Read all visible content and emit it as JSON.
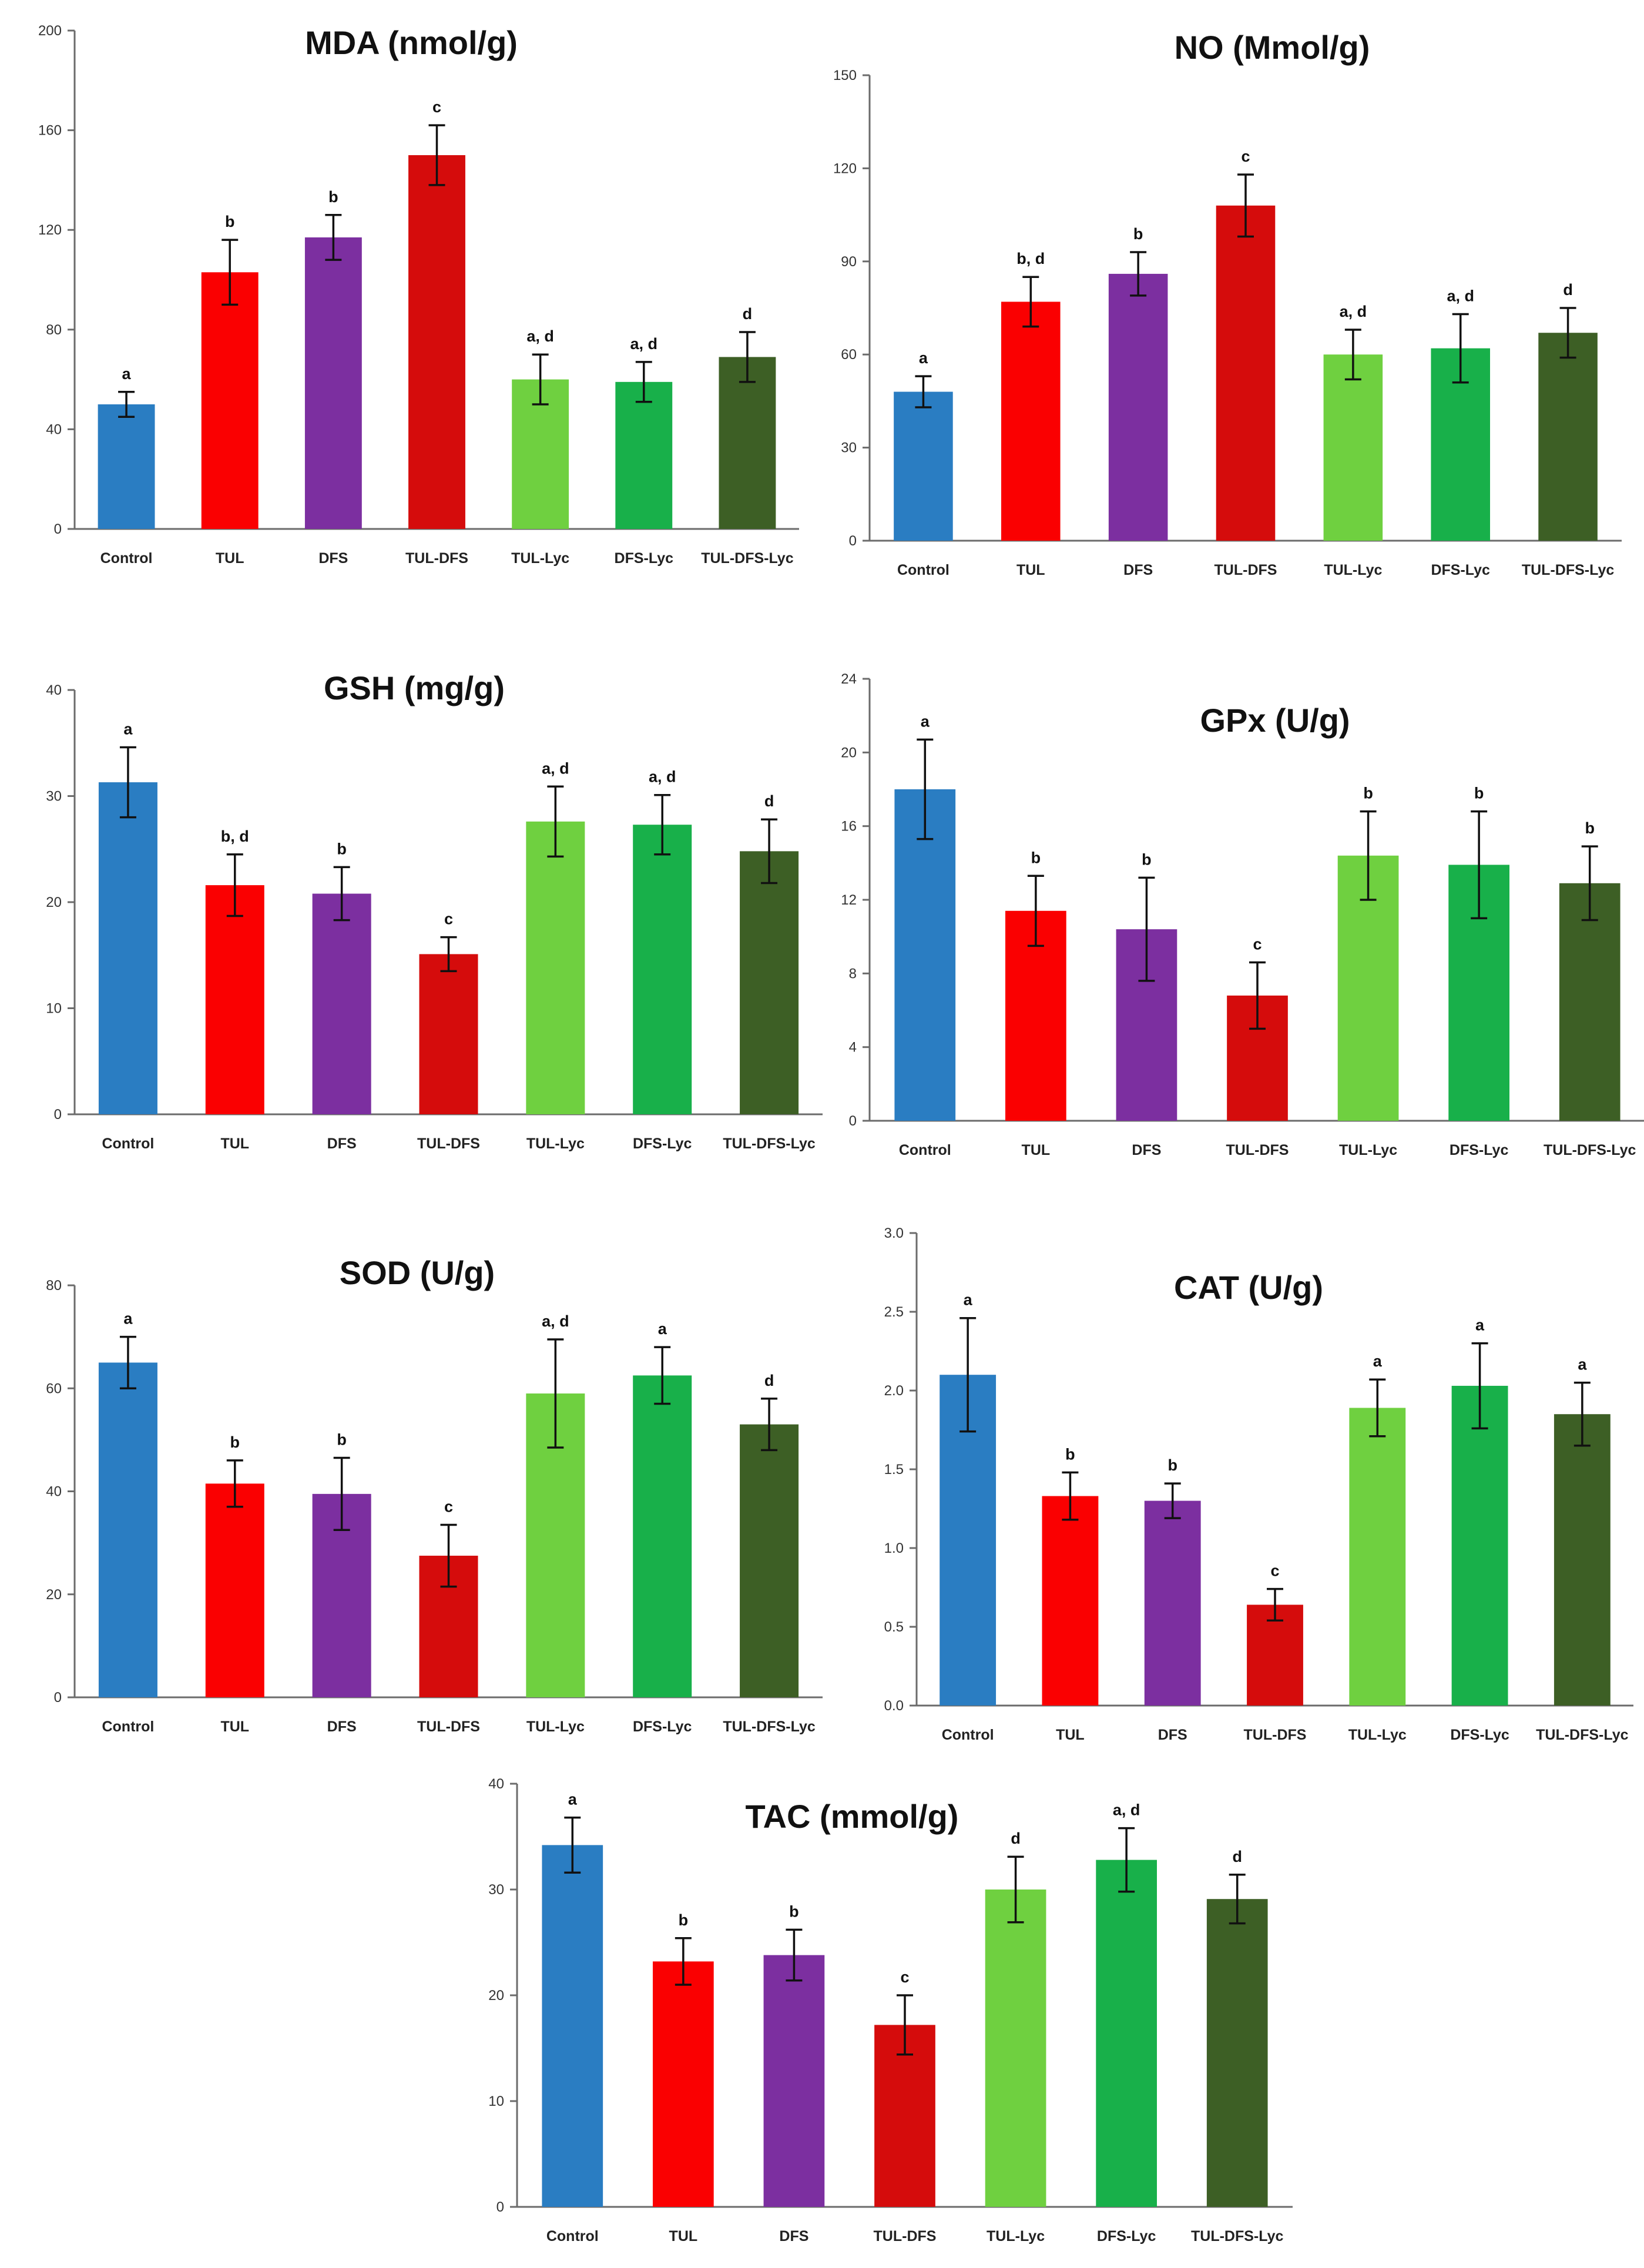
{
  "colors": {
    "Control": "#2a7dc2",
    "TUL": "#fa0001",
    "DFS": "#7c2fa0",
    "TUL-DFS": "#d50c0c",
    "TUL-Lyc": "#6fd040",
    "DFS-Lyc": "#18b04a",
    "TUL-DFS-Lyc": "#3d5f25"
  },
  "chart_data": [
    {
      "type": "bar",
      "title": "MDA (nmol/g)",
      "categories": [
        "Control",
        "TUL",
        "DFS",
        "TUL-DFS",
        "TUL-Lyc",
        "DFS-Lyc",
        "TUL-DFS-Lyc"
      ],
      "values": [
        50,
        103,
        117,
        150,
        60,
        59,
        69
      ],
      "errors": [
        5,
        13,
        9,
        12,
        10,
        8,
        10
      ],
      "sig_labels": [
        "a",
        "b",
        "b",
        "c",
        "a, d",
        "a, d",
        "d"
      ],
      "ylim": [
        0,
        200
      ],
      "yticks": [
        0,
        40,
        80,
        120,
        160,
        200
      ],
      "ytick_labels": [
        "0",
        "40",
        "80",
        "120",
        "160",
        "200"
      ],
      "xlabel": "",
      "ylabel": ""
    },
    {
      "type": "bar",
      "title": "NO (Mmol/g)",
      "categories": [
        "Control",
        "TUL",
        "DFS",
        "TUL-DFS",
        "TUL-Lyc",
        "DFS-Lyc",
        "TUL-DFS-Lyc"
      ],
      "values": [
        48,
        77,
        86,
        108,
        60,
        62,
        67
      ],
      "errors": [
        5,
        8,
        7,
        10,
        8,
        11,
        8
      ],
      "sig_labels": [
        "a",
        "b, d",
        "b",
        "c",
        "a, d",
        "a, d",
        "d"
      ],
      "ylim": [
        0,
        150
      ],
      "yticks": [
        0,
        30,
        60,
        90,
        120,
        150
      ],
      "ytick_labels": [
        "0",
        "30",
        "60",
        "90",
        "120",
        "150"
      ],
      "xlabel": "",
      "ylabel": ""
    },
    {
      "type": "bar",
      "title": "GSH (mg/g)",
      "categories": [
        "Control",
        "TUL",
        "DFS",
        "TUL-DFS",
        "TUL-Lyc",
        "DFS-Lyc",
        "TUL-DFS-Lyc"
      ],
      "values": [
        31.3,
        21.6,
        20.8,
        15.1,
        27.6,
        27.3,
        24.8
      ],
      "errors": [
        3.3,
        2.9,
        2.5,
        1.6,
        3.3,
        2.8,
        3.0
      ],
      "sig_labels": [
        "a",
        "b, d",
        "b",
        "c",
        "a, d",
        "a, d",
        "d"
      ],
      "ylim": [
        0,
        40
      ],
      "yticks": [
        0,
        10,
        20,
        30,
        40
      ],
      "ytick_labels": [
        "0",
        "10",
        "20",
        "30",
        "40"
      ],
      "xlabel": "",
      "ylabel": ""
    },
    {
      "type": "bar",
      "title": "GPx (U/g)",
      "categories": [
        "Control",
        "TUL",
        "DFS",
        "TUL-DFS",
        "TUL-Lyc",
        "DFS-Lyc",
        "TUL-DFS-Lyc"
      ],
      "values": [
        18,
        11.4,
        10.4,
        6.8,
        14.4,
        13.9,
        12.9
      ],
      "errors": [
        2.7,
        1.9,
        2.8,
        1.8,
        2.4,
        2.9,
        2.0
      ],
      "sig_labels": [
        "a",
        "b",
        "b",
        "c",
        "b",
        "b",
        "b"
      ],
      "ylim": [
        0,
        24
      ],
      "yticks": [
        0,
        4,
        8,
        12,
        16,
        20,
        24
      ],
      "ytick_labels": [
        "0",
        "4",
        "8",
        "12",
        "16",
        "20",
        "24"
      ],
      "xlabel": "",
      "ylabel": ""
    },
    {
      "type": "bar",
      "title": "SOD (U/g)",
      "categories": [
        "Control",
        "TUL",
        "DFS",
        "TUL-DFS",
        "TUL-Lyc",
        "DFS-Lyc",
        "TUL-DFS-Lyc"
      ],
      "values": [
        65,
        41.5,
        39.5,
        27.5,
        59,
        62.5,
        53
      ],
      "errors": [
        5,
        4.5,
        7,
        6,
        10.5,
        5.5,
        5
      ],
      "sig_labels": [
        "a",
        "b",
        "b",
        "c",
        "a, d",
        "a",
        "d"
      ],
      "ylim": [
        0,
        80
      ],
      "yticks": [
        0,
        20,
        40,
        60,
        80
      ],
      "ytick_labels": [
        "0",
        "20",
        "40",
        "60",
        "80"
      ],
      "xlabel": "",
      "ylabel": ""
    },
    {
      "type": "bar",
      "title": "CAT (U/g)",
      "categories": [
        "Control",
        "TUL",
        "DFS",
        "TUL-DFS",
        "TUL-Lyc",
        "DFS-Lyc",
        "TUL-DFS-Lyc"
      ],
      "values": [
        2.1,
        1.33,
        1.3,
        0.64,
        1.89,
        2.03,
        1.85
      ],
      "errors": [
        0.36,
        0.15,
        0.11,
        0.1,
        0.18,
        0.27,
        0.2
      ],
      "sig_labels": [
        "a",
        "b",
        "b",
        "c",
        "a",
        "a",
        "a"
      ],
      "ylim": [
        0,
        3.0
      ],
      "yticks": [
        0,
        0.5,
        1.0,
        1.5,
        2.0,
        2.5,
        3.0
      ],
      "ytick_labels": [
        "0.0",
        "0.5",
        "1.0",
        "1.5",
        "2.0",
        "2.5",
        "3.0"
      ],
      "xlabel": "",
      "ylabel": ""
    },
    {
      "type": "bar",
      "title": "TAC (mmol/g)",
      "categories": [
        "Control",
        "TUL",
        "DFS",
        "TUL-DFS",
        "TUL-Lyc",
        "DFS-Lyc",
        "TUL-DFS-Lyc"
      ],
      "values": [
        34.2,
        23.2,
        23.8,
        17.2,
        30,
        32.8,
        29.1
      ],
      "errors": [
        2.6,
        2.2,
        2.4,
        2.8,
        3.1,
        3.0,
        2.3
      ],
      "sig_labels": [
        "a",
        "b",
        "b",
        "c",
        "d",
        "a, d",
        "d"
      ],
      "ylim": [
        0,
        40
      ],
      "yticks": [
        0,
        10,
        20,
        30,
        40
      ],
      "ytick_labels": [
        "0",
        "10",
        "20",
        "30",
        "40"
      ],
      "xlabel": "",
      "ylabel": ""
    }
  ]
}
